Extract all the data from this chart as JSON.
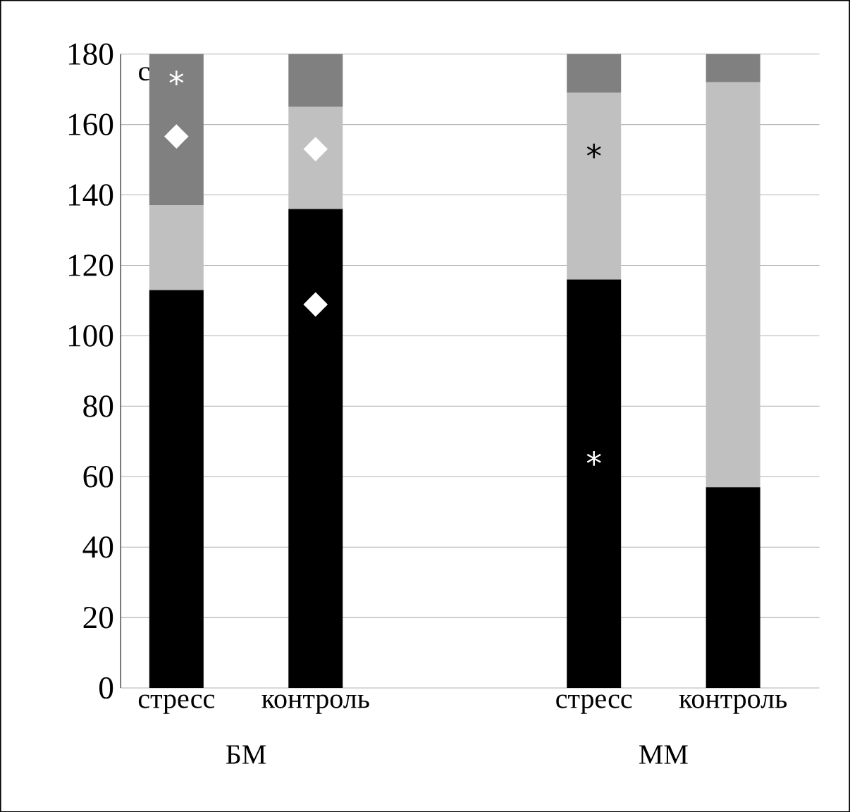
{
  "chart_data": {
    "type": "bar",
    "stacked": true,
    "categories": [
      "стресс",
      "контроль",
      null,
      "стресс",
      "контроль"
    ],
    "series": [
      {
        "color": "#000000",
        "values": [
          113,
          136,
          null,
          116,
          57
        ]
      },
      {
        "color": "#c0c0c0",
        "values": [
          24,
          29,
          null,
          53,
          115
        ]
      },
      {
        "color": "#808080",
        "values": [
          43,
          15,
          null,
          11,
          8
        ]
      }
    ],
    "ylim": [
      0,
      180
    ],
    "yticks": [
      0,
      20,
      40,
      60,
      80,
      100,
      120,
      140,
      160,
      180
    ],
    "grid": "y",
    "annotations": [
      "c",
      "БМ",
      "ММ",
      "*",
      "◆",
      "◆",
      "◆",
      "*",
      "*"
    ]
  }
}
